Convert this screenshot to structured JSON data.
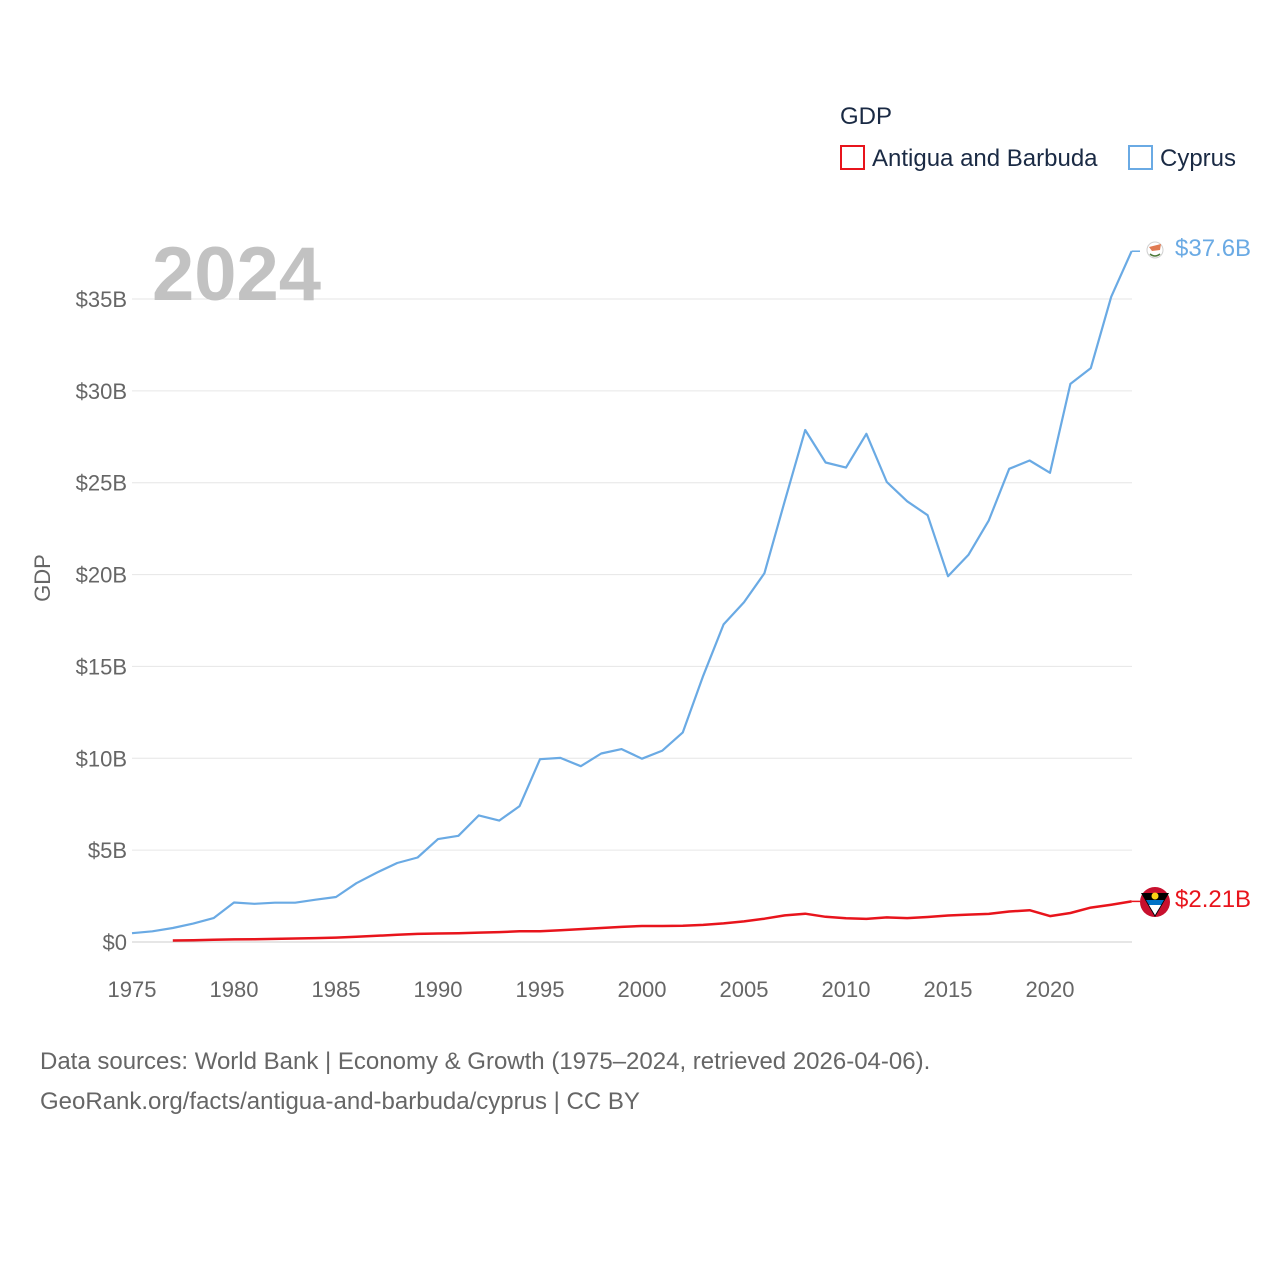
{
  "chart_data": {
    "type": "line",
    "title": "GDP",
    "ylabel": "GDP",
    "xlabel": "",
    "current_year": "2024",
    "xlim": [
      1975,
      2024
    ],
    "ylim": [
      0,
      38000000000
    ],
    "x_ticks": [
      1975,
      1980,
      1985,
      1990,
      1995,
      2000,
      2005,
      2010,
      2015,
      2020
    ],
    "y_ticks": [
      {
        "value": 0,
        "label": "$0"
      },
      {
        "value": 5000000000,
        "label": "$5B"
      },
      {
        "value": 10000000000,
        "label": "$10B"
      },
      {
        "value": 15000000000,
        "label": "$15B"
      },
      {
        "value": 20000000000,
        "label": "$20B"
      },
      {
        "value": 25000000000,
        "label": "$25B"
      },
      {
        "value": 30000000000,
        "label": "$30B"
      },
      {
        "value": 35000000000,
        "label": "$35B"
      }
    ],
    "grid": true,
    "legend_position": "top-right",
    "series": [
      {
        "name": "Antigua and Barbuda",
        "color": "#e8141c",
        "end_label": "$2.21B",
        "x": [
          1977,
          1978,
          1979,
          1980,
          1981,
          1982,
          1983,
          1984,
          1985,
          1986,
          1987,
          1988,
          1989,
          1990,
          1991,
          1992,
          1993,
          1994,
          1995,
          1996,
          1997,
          1998,
          1999,
          2000,
          2001,
          2002,
          2003,
          2004,
          2005,
          2006,
          2007,
          2008,
          2009,
          2010,
          2011,
          2012,
          2013,
          2014,
          2015,
          2016,
          2017,
          2018,
          2019,
          2020,
          2021,
          2022,
          2023,
          2024
        ],
        "values": [
          80000000.0,
          100000000.0,
          120000000.0,
          140000000.0,
          150000000.0,
          170000000.0,
          190000000.0,
          210000000.0,
          240000000.0,
          290000000.0,
          340000000.0,
          400000000.0,
          440000000.0,
          460000000.0,
          480000000.0,
          510000000.0,
          540000000.0,
          580000000.0,
          580000000.0,
          640000000.0,
          700000000.0,
          760000000.0,
          820000000.0,
          870000000.0,
          870000000.0,
          880000000.0,
          930000000.0,
          1010000000.0,
          1120000000.0,
          1270000000.0,
          1450000000.0,
          1540000000.0,
          1370000000.0,
          1290000000.0,
          1260000000.0,
          1340000000.0,
          1300000000.0,
          1360000000.0,
          1440000000.0,
          1490000000.0,
          1530000000.0,
          1660000000.0,
          1730000000.0,
          1410000000.0,
          1580000000.0,
          1870000000.0,
          2030000000.0,
          2210000000.0
        ]
      },
      {
        "name": "Cyprus",
        "color": "#6aaae4",
        "end_label": "$37.6B",
        "x": [
          1975,
          1976,
          1977,
          1978,
          1979,
          1980,
          1981,
          1982,
          1983,
          1984,
          1985,
          1986,
          1987,
          1988,
          1989,
          1990,
          1991,
          1992,
          1993,
          1994,
          1995,
          1996,
          1997,
          1998,
          1999,
          2000,
          2001,
          2002,
          2003,
          2004,
          2005,
          2006,
          2007,
          2008,
          2009,
          2010,
          2011,
          2012,
          2013,
          2014,
          2015,
          2016,
          2017,
          2018,
          2019,
          2020,
          2021,
          2022,
          2023,
          2024
        ],
        "values": [
          480000000.0,
          580000000.0,
          760000000.0,
          1000000000.0,
          1300000000.0,
          2150000000.0,
          2080000000.0,
          2140000000.0,
          2140000000.0,
          2300000000.0,
          2450000000.0,
          3200000000.0,
          3780000000.0,
          4300000000.0,
          4600000000.0,
          5600000000.0,
          5780000000.0,
          6890000000.0,
          6610000000.0,
          7400000000.0,
          9950000000.0,
          10020000000.0,
          9570000000.0,
          10260000000.0,
          10500000000.0,
          9980000000.0,
          10420000000.0,
          11410000000.0,
          14490000000.0,
          17290000000.0,
          18490000000.0,
          20070000000.0,
          24010000000.0,
          27870000000.0,
          26100000000.0,
          25820000000.0,
          27660000000.0,
          25040000000.0,
          23990000000.0,
          23230000000.0,
          19910000000.0,
          21070000000.0,
          22950000000.0,
          25760000000.0,
          26210000000.0,
          25540000000.0,
          30380000000.0,
          31240000000.0,
          35120000000.0,
          37600000000.0
        ]
      }
    ]
  },
  "legend": {
    "title": "GDP",
    "items": [
      "Antigua and Barbuda",
      "Cyprus"
    ]
  },
  "source": {
    "line1": "Data sources: World Bank | Economy & Growth (1975–2024, retrieved 2026-04-06).",
    "line2": "GeoRank.org/facts/antigua-and-barbuda/cyprus | CC BY"
  }
}
